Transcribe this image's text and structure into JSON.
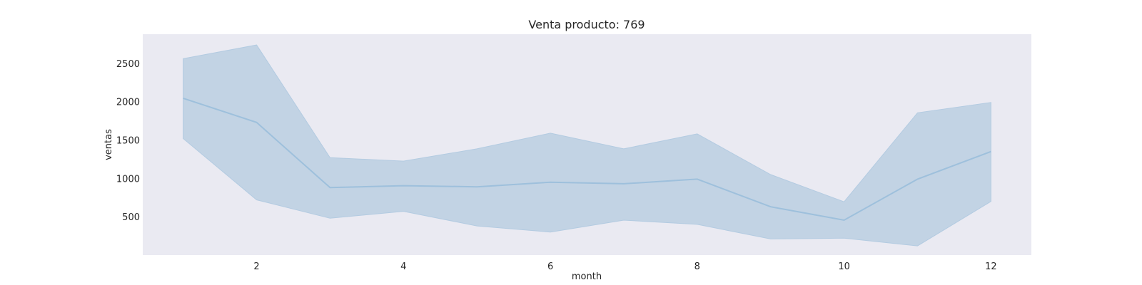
{
  "chart_data": {
    "type": "area",
    "title": "Venta producto: 769",
    "xlabel": "month",
    "ylabel": "ventas",
    "xlim": [
      0.45,
      12.55
    ],
    "ylim": [
      0,
      2880
    ],
    "xticks": [
      2,
      4,
      6,
      8,
      10,
      12
    ],
    "yticks": [
      500,
      1000,
      1500,
      2000,
      2500
    ],
    "grid": false,
    "background": "#eaeaf2",
    "line_color": "#9ec0dc",
    "band_fill": "#c2d3e4",
    "band_edge": "#b3cbe1",
    "x": [
      1,
      2,
      3,
      4,
      5,
      6,
      7,
      8,
      9,
      10,
      11,
      12
    ],
    "series": [
      {
        "values": [
          2045,
          1730,
          880,
          905,
          890,
          950,
          930,
          990,
          630,
          455,
          990,
          1350
        ],
        "lower": [
          1520,
          720,
          480,
          570,
          380,
          300,
          455,
          400,
          210,
          220,
          120,
          700
        ],
        "upper": [
          2560,
          2740,
          1270,
          1225,
          1385,
          1590,
          1385,
          1580,
          1050,
          695,
          1855,
          1990
        ]
      }
    ]
  }
}
